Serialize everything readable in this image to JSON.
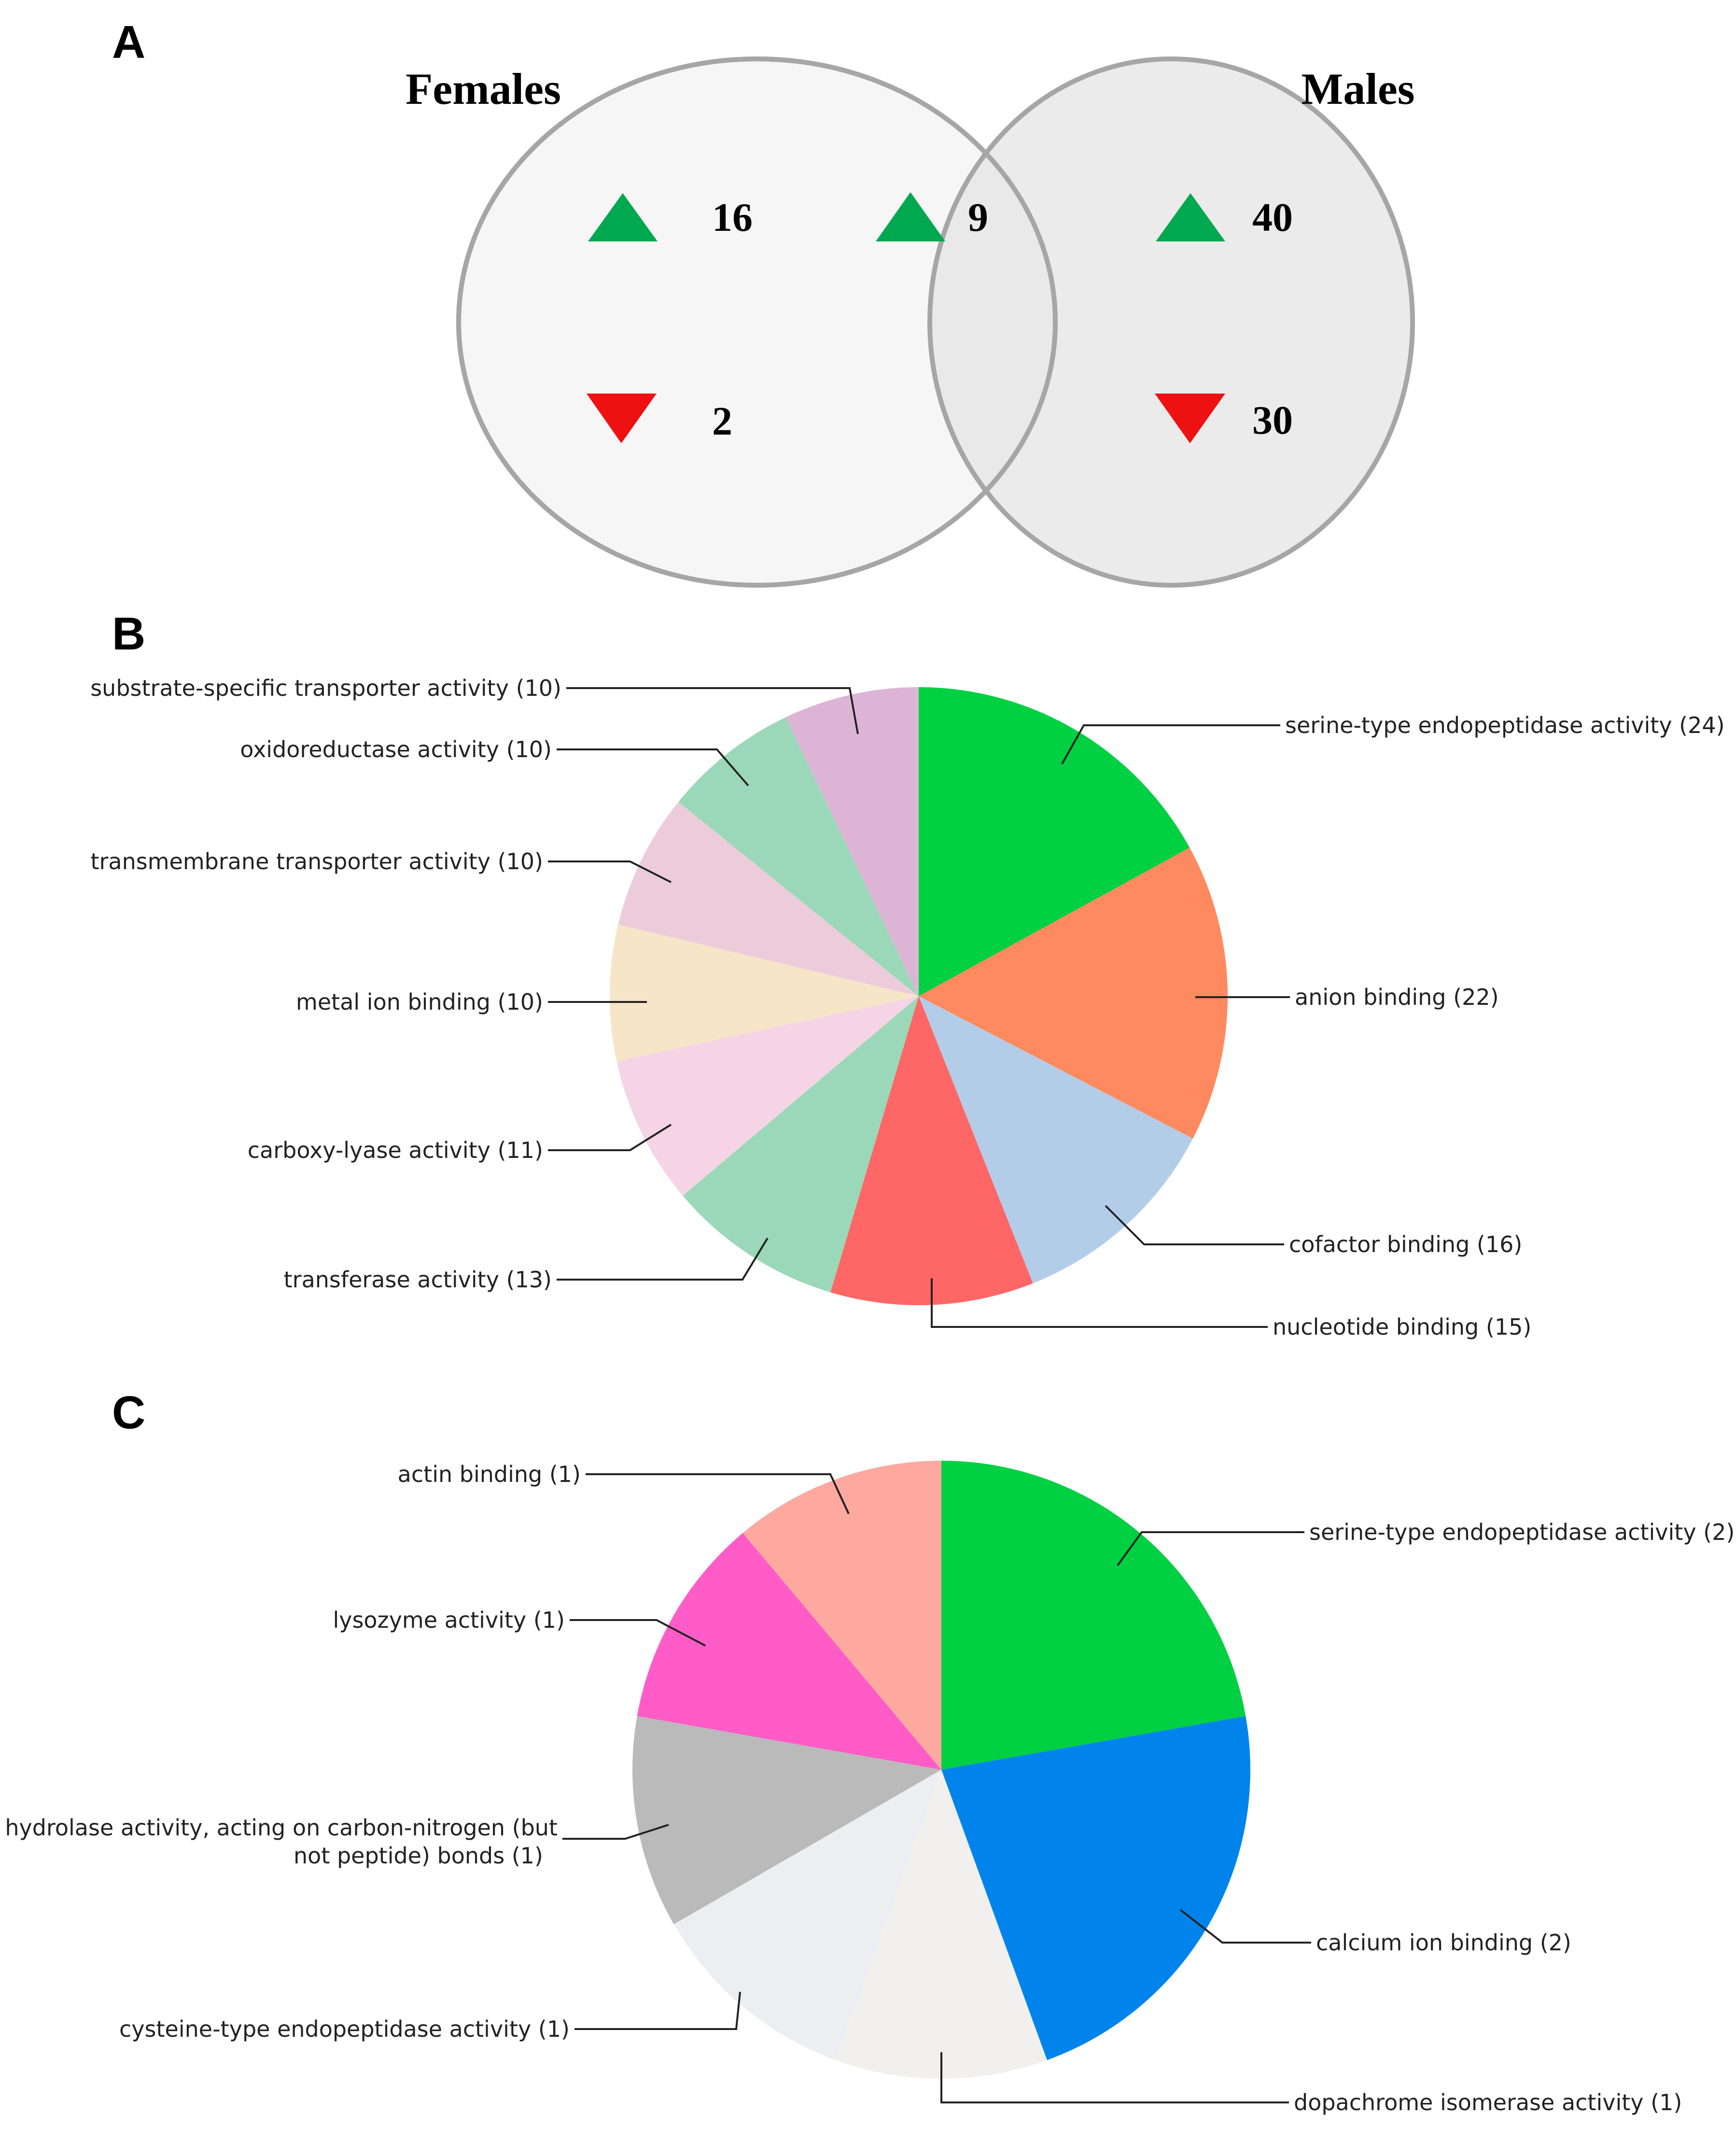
{
  "panels": {
    "a": "A",
    "b": "B",
    "c": "C"
  },
  "venn": {
    "left_title": "Females",
    "right_title": "Males",
    "left_up": "16",
    "left_down": "2",
    "overlap_up": "9",
    "right_up": "40",
    "right_down": "30",
    "colors": {
      "up": "#00A84F",
      "down": "#EE1111",
      "left_fill": "#F6F6F6",
      "right_fill": "#E6E6E6",
      "stroke": "#A6A6A6"
    }
  },
  "chart_data": [
    {
      "type": "pie",
      "panel": "B",
      "slices": [
        {
          "label": "serine-type endopeptidase activity (24)",
          "value": 24,
          "color": "#00D042"
        },
        {
          "label": "anion binding (22)",
          "value": 22,
          "color": "#FF8A5F"
        },
        {
          "label": "cofactor binding (16)",
          "value": 16,
          "color": "#B3CDE9"
        },
        {
          "label": "nucleotide binding (15)",
          "value": 15,
          "color": "#FF6666"
        },
        {
          "label": "transferase activity (13)",
          "value": 13,
          "color": "#9BD8B9"
        },
        {
          "label": "carboxy-lyase activity (11)",
          "value": 11,
          "color": "#F5D5E5"
        },
        {
          "label": "metal ion binding (10)",
          "value": 10,
          "color": "#F7E5C8"
        },
        {
          "label": "transmembrane transporter activity (10)",
          "value": 10,
          "color": "#ECCCDB"
        },
        {
          "label": "oxidoreductase activity (10)",
          "value": 10,
          "color": "#9BD8B9"
        },
        {
          "label": "substrate-specific transporter activity (10)",
          "value": 10,
          "color": "#DCB5D6"
        }
      ]
    },
    {
      "type": "pie",
      "panel": "C",
      "slices": [
        {
          "label": "serine-type endopeptidase activity (2)",
          "value": 2,
          "color": "#00D042"
        },
        {
          "label": "calcium ion binding (2)",
          "value": 2,
          "color": "#0084EB"
        },
        {
          "label": "dopachrome isomerase activity (1)",
          "value": 1,
          "color": "#F2F0EE"
        },
        {
          "label": "cysteine-type endopeptidase activity (1)",
          "value": 1,
          "color": "#ECEEF2"
        },
        {
          "label": "hydrolase activity, acting on carbon-nitrogen (but not peptide) bonds (1)",
          "value": 1,
          "color": "#BABABA"
        },
        {
          "label": "lysozyme activity (1)",
          "value": 1,
          "color": "#FF5CC8"
        },
        {
          "label": "actin binding (1)",
          "value": 1,
          "color": "#FDA99F"
        }
      ]
    }
  ]
}
